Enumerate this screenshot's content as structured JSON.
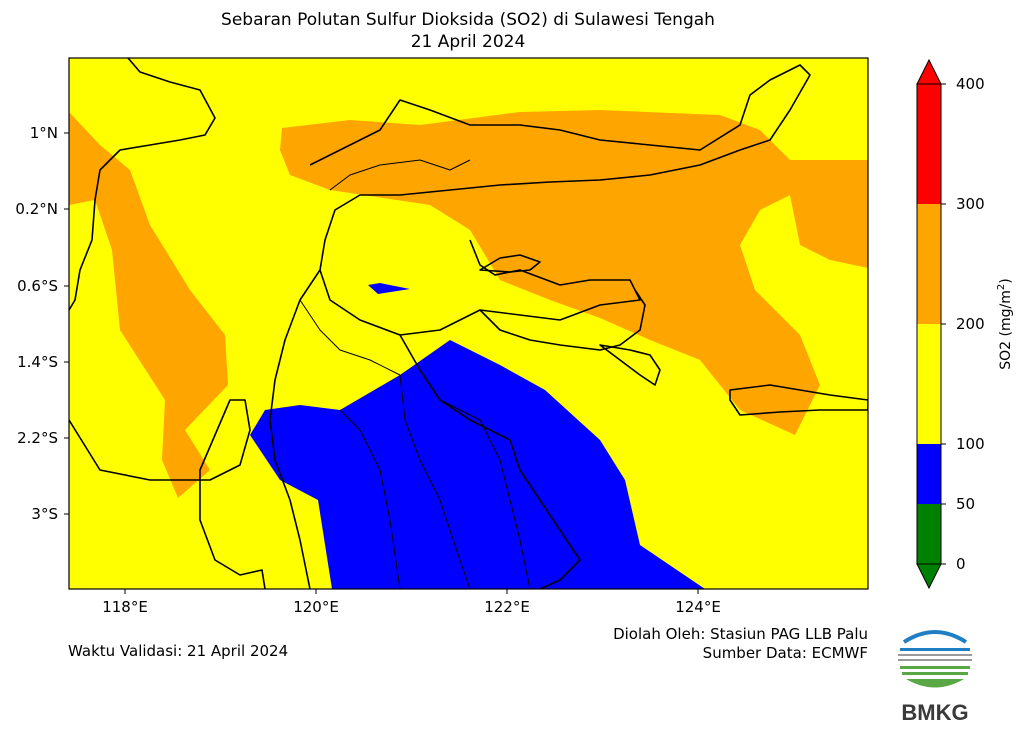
{
  "title": {
    "line1": "Sebaran Polutan Sulfur Dioksida (SO2) di Sulawesi Tengah",
    "line2": "21 April 2024"
  },
  "map": {
    "lat_labels": [
      "1°N",
      "0.2°N",
      "0.6°S",
      "1.4°S",
      "2.2°S",
      "3°S"
    ],
    "lon_labels": [
      "118°E",
      "120°E",
      "122°E",
      "124°E"
    ],
    "colors": {
      "background_class": "#ffff00",
      "orange_class": "#ffa500",
      "blue_class": "#0000ff",
      "coastline": "#000000"
    }
  },
  "colorbar": {
    "label_text": "SO2 (mg/m",
    "label_sup": "2",
    "label_end": ")",
    "ticks": [
      "0",
      "50",
      "100",
      "200",
      "300",
      "400"
    ],
    "bands": [
      {
        "from": 0,
        "to": 50,
        "color": "#008000"
      },
      {
        "from": 50,
        "to": 100,
        "color": "#0000ff"
      },
      {
        "from": 100,
        "to": 200,
        "color": "#ffff00"
      },
      {
        "from": 200,
        "to": 300,
        "color": "#ffa500"
      },
      {
        "from": 300,
        "to": 400,
        "color": "#ff0000"
      }
    ]
  },
  "footer": {
    "validity": "Waktu Validasi: 21 April 2024",
    "processed_by": "Diolah Oleh: Stasiun PAG LLB Palu",
    "source": "Sumber Data: ECMWF"
  },
  "logo": {
    "text": "BMKG",
    "colors": {
      "blue": "#1f7fc4",
      "green": "#5aa845",
      "grey": "#9a9a9a"
    }
  }
}
